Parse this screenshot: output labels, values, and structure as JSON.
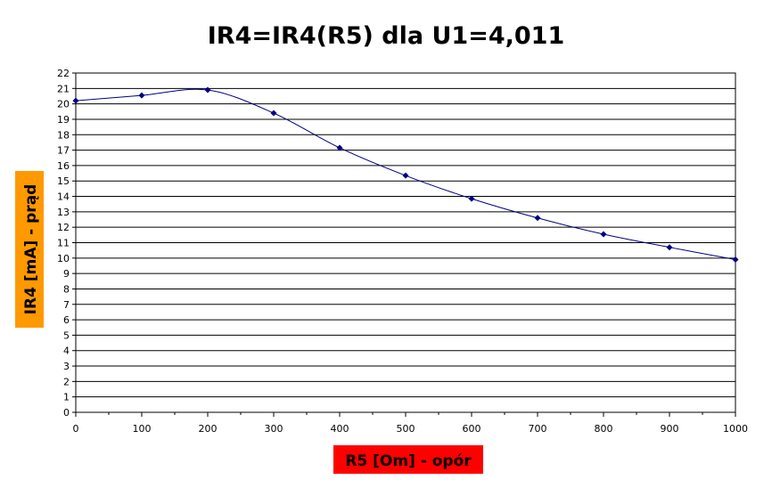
{
  "chart_data": {
    "type": "line",
    "title": "IR4=IR4(R5) dla U1=4,011",
    "xlabel": "R5 [Om] - opór",
    "ylabel": "IR4 [mA] - prąd",
    "xlim": [
      0,
      1000
    ],
    "ylim": [
      0,
      22
    ],
    "x_ticks": [
      0,
      100,
      200,
      300,
      400,
      500,
      600,
      700,
      800,
      900,
      1000
    ],
    "y_ticks": [
      0,
      1,
      2,
      3,
      4,
      5,
      6,
      7,
      8,
      9,
      10,
      11,
      12,
      13,
      14,
      15,
      16,
      17,
      18,
      19,
      20,
      21,
      22
    ],
    "grid": true,
    "legend": "none",
    "colors": {
      "series": "#000080",
      "xlabel_bg": "#ff0000",
      "ylabel_bg": "#ff9900"
    },
    "series": [
      {
        "x": [
          0,
          100,
          200,
          300,
          400,
          500,
          600,
          700,
          800,
          900,
          1000
        ],
        "values": [
          20.2,
          20.55,
          20.9,
          19.4,
          17.15,
          15.35,
          13.85,
          12.6,
          11.55,
          10.7,
          9.9
        ]
      }
    ]
  }
}
